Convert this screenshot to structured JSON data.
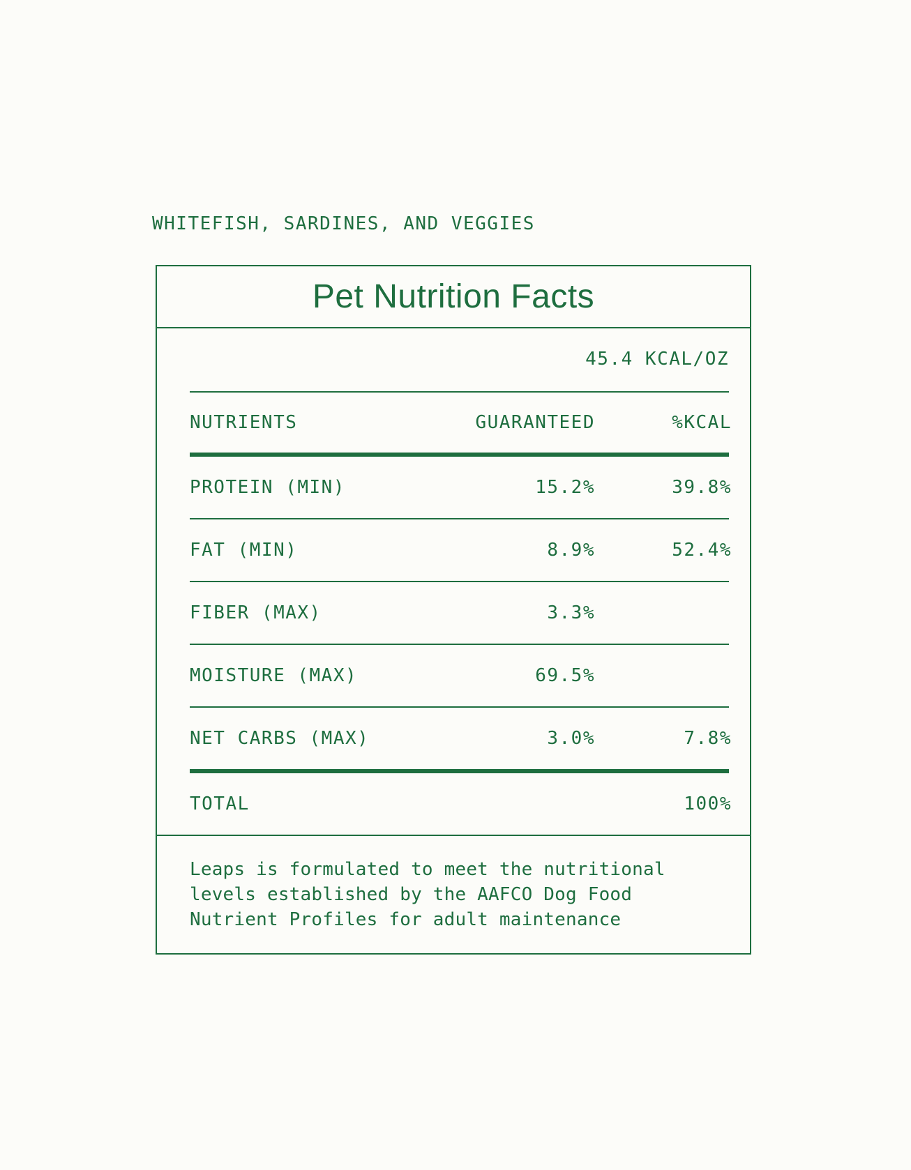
{
  "page": {
    "background": "#FCFCF9",
    "accent_green": "#1E6E3F",
    "kicker": "WHITEFISH, SARDINES, AND VEGGIES"
  },
  "label": {
    "title": "Pet Nutrition Facts",
    "calories_per_oz": "45.4 KCAL/OZ",
    "table": {
      "headers": {
        "nutrient": "NUTRIENTS",
        "guaranteed": "GUARANTEED",
        "kcal": "%KCAL"
      },
      "rows": [
        {
          "nutrient": "PROTEIN (MIN)",
          "guaranteed": "15.2%",
          "kcal": "39.8%"
        },
        {
          "nutrient": "FAT (MIN)",
          "guaranteed": "8.9%",
          "kcal": "52.4%"
        },
        {
          "nutrient": "FIBER (MAX)",
          "guaranteed": "3.3%",
          "kcal": ""
        },
        {
          "nutrient": "MOISTURE (MAX)",
          "guaranteed": "69.5%",
          "kcal": ""
        },
        {
          "nutrient": "NET CARBS (MAX)",
          "guaranteed": "3.0%",
          "kcal": "7.8%"
        }
      ],
      "total": {
        "label": "TOTAL",
        "value": "100%"
      }
    },
    "footnote": "Leaps is formulated to meet the nutritional levels established by the AAFCO Dog Food Nutrient Profiles for adult maintenance"
  }
}
